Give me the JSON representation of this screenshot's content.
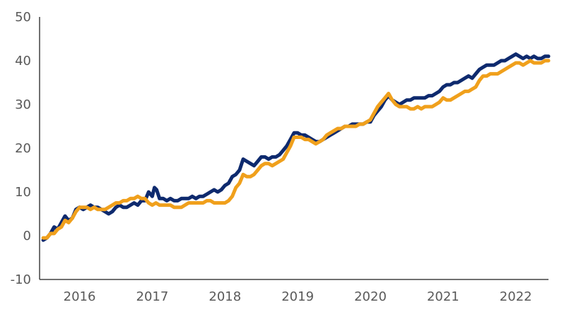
{
  "chart_data": {
    "type": "line",
    "title": "",
    "xlabel": "",
    "ylabel": "",
    "xlim": [
      2015.45,
      2022.45
    ],
    "ylim": [
      -10,
      50
    ],
    "yticks": [
      -10,
      0,
      10,
      20,
      30,
      40,
      50
    ],
    "xticks": [
      2016,
      2017,
      2018,
      2019,
      2020,
      2021,
      2022
    ],
    "grid": false,
    "legend": "none",
    "series": [
      {
        "color": "#0e2a6e",
        "points": [
          [
            2015.5,
            -1.0
          ],
          [
            2015.55,
            -0.5
          ],
          [
            2015.6,
            0.5
          ],
          [
            2015.65,
            2.0
          ],
          [
            2015.7,
            1.5
          ],
          [
            2015.75,
            3.0
          ],
          [
            2015.8,
            4.5
          ],
          [
            2015.85,
            3.5
          ],
          [
            2015.9,
            4.0
          ],
          [
            2015.95,
            6.0
          ],
          [
            2016.0,
            6.5
          ],
          [
            2016.05,
            6.0
          ],
          [
            2016.1,
            6.5
          ],
          [
            2016.15,
            7.0
          ],
          [
            2016.2,
            6.5
          ],
          [
            2016.25,
            6.5
          ],
          [
            2016.3,
            6.0
          ],
          [
            2016.35,
            5.5
          ],
          [
            2016.4,
            5.0
          ],
          [
            2016.45,
            5.5
          ],
          [
            2016.5,
            6.5
          ],
          [
            2016.55,
            7.0
          ],
          [
            2016.6,
            6.5
          ],
          [
            2016.65,
            6.5
          ],
          [
            2016.7,
            7.0
          ],
          [
            2016.75,
            7.5
          ],
          [
            2016.8,
            7.0
          ],
          [
            2016.85,
            8.0
          ],
          [
            2016.9,
            8.0
          ],
          [
            2016.95,
            10.0
          ],
          [
            2017.0,
            9.0
          ],
          [
            2017.03,
            11.0
          ],
          [
            2017.06,
            10.5
          ],
          [
            2017.1,
            8.5
          ],
          [
            2017.15,
            8.5
          ],
          [
            2017.2,
            8.0
          ],
          [
            2017.25,
            8.5
          ],
          [
            2017.3,
            8.0
          ],
          [
            2017.35,
            8.0
          ],
          [
            2017.4,
            8.5
          ],
          [
            2017.45,
            8.5
          ],
          [
            2017.5,
            8.5
          ],
          [
            2017.55,
            9.0
          ],
          [
            2017.6,
            8.5
          ],
          [
            2017.65,
            9.0
          ],
          [
            2017.7,
            9.0
          ],
          [
            2017.75,
            9.5
          ],
          [
            2017.8,
            10.0
          ],
          [
            2017.85,
            10.5
          ],
          [
            2017.9,
            10.0
          ],
          [
            2017.95,
            10.5
          ],
          [
            2018.0,
            11.5
          ],
          [
            2018.05,
            12.0
          ],
          [
            2018.1,
            13.5
          ],
          [
            2018.15,
            14.0
          ],
          [
            2018.2,
            15.0
          ],
          [
            2018.25,
            17.5
          ],
          [
            2018.3,
            17.0
          ],
          [
            2018.35,
            16.5
          ],
          [
            2018.4,
            16.0
          ],
          [
            2018.45,
            17.0
          ],
          [
            2018.5,
            18.0
          ],
          [
            2018.55,
            18.0
          ],
          [
            2018.6,
            17.5
          ],
          [
            2018.65,
            18.0
          ],
          [
            2018.7,
            18.0
          ],
          [
            2018.75,
            18.5
          ],
          [
            2018.8,
            19.5
          ],
          [
            2018.85,
            20.5
          ],
          [
            2018.9,
            22.0
          ],
          [
            2018.95,
            23.5
          ],
          [
            2019.0,
            23.5
          ],
          [
            2019.05,
            23.0
          ],
          [
            2019.1,
            23.0
          ],
          [
            2019.15,
            22.5
          ],
          [
            2019.2,
            22.0
          ],
          [
            2019.25,
            21.5
          ],
          [
            2019.3,
            21.5
          ],
          [
            2019.35,
            22.0
          ],
          [
            2019.4,
            22.5
          ],
          [
            2019.45,
            23.0
          ],
          [
            2019.5,
            23.5
          ],
          [
            2019.55,
            24.0
          ],
          [
            2019.6,
            24.5
          ],
          [
            2019.65,
            25.0
          ],
          [
            2019.7,
            25.0
          ],
          [
            2019.75,
            25.5
          ],
          [
            2019.8,
            25.5
          ],
          [
            2019.85,
            25.5
          ],
          [
            2019.9,
            25.5
          ],
          [
            2019.95,
            26.0
          ],
          [
            2020.0,
            26.0
          ],
          [
            2020.05,
            27.5
          ],
          [
            2020.1,
            28.5
          ],
          [
            2020.15,
            29.5
          ],
          [
            2020.2,
            31.0
          ],
          [
            2020.25,
            32.0
          ],
          [
            2020.3,
            31.0
          ],
          [
            2020.35,
            30.5
          ],
          [
            2020.4,
            30.0
          ],
          [
            2020.45,
            30.5
          ],
          [
            2020.5,
            31.0
          ],
          [
            2020.55,
            31.0
          ],
          [
            2020.6,
            31.5
          ],
          [
            2020.65,
            31.5
          ],
          [
            2020.7,
            31.5
          ],
          [
            2020.75,
            31.5
          ],
          [
            2020.8,
            32.0
          ],
          [
            2020.85,
            32.0
          ],
          [
            2020.9,
            32.5
          ],
          [
            2020.95,
            33.0
          ],
          [
            2021.0,
            34.0
          ],
          [
            2021.05,
            34.5
          ],
          [
            2021.1,
            34.5
          ],
          [
            2021.15,
            35.0
          ],
          [
            2021.2,
            35.0
          ],
          [
            2021.25,
            35.5
          ],
          [
            2021.3,
            36.0
          ],
          [
            2021.35,
            36.5
          ],
          [
            2021.4,
            36.0
          ],
          [
            2021.45,
            37.0
          ],
          [
            2021.5,
            38.0
          ],
          [
            2021.55,
            38.5
          ],
          [
            2021.6,
            39.0
          ],
          [
            2021.65,
            39.0
          ],
          [
            2021.7,
            39.0
          ],
          [
            2021.75,
            39.5
          ],
          [
            2021.8,
            40.0
          ],
          [
            2021.85,
            40.0
          ],
          [
            2021.9,
            40.5
          ],
          [
            2021.95,
            41.0
          ],
          [
            2022.0,
            41.5
          ],
          [
            2022.05,
            41.0
          ],
          [
            2022.1,
            40.5
          ],
          [
            2022.15,
            41.0
          ],
          [
            2022.2,
            40.5
          ],
          [
            2022.25,
            41.0
          ],
          [
            2022.3,
            40.5
          ],
          [
            2022.35,
            40.5
          ],
          [
            2022.4,
            41.0
          ],
          [
            2022.45,
            41.0
          ]
        ]
      },
      {
        "color": "#f0a01c",
        "points": [
          [
            2015.5,
            -0.5
          ],
          [
            2015.55,
            -0.5
          ],
          [
            2015.6,
            0.5
          ],
          [
            2015.65,
            0.5
          ],
          [
            2015.7,
            1.5
          ],
          [
            2015.75,
            2.0
          ],
          [
            2015.8,
            3.5
          ],
          [
            2015.85,
            3.0
          ],
          [
            2015.9,
            4.0
          ],
          [
            2015.95,
            5.5
          ],
          [
            2016.0,
            6.5
          ],
          [
            2016.05,
            6.5
          ],
          [
            2016.1,
            6.5
          ],
          [
            2016.15,
            6.0
          ],
          [
            2016.2,
            6.5
          ],
          [
            2016.25,
            6.0
          ],
          [
            2016.3,
            6.0
          ],
          [
            2016.35,
            6.0
          ],
          [
            2016.4,
            6.5
          ],
          [
            2016.45,
            7.0
          ],
          [
            2016.5,
            7.5
          ],
          [
            2016.55,
            7.5
          ],
          [
            2016.6,
            8.0
          ],
          [
            2016.65,
            8.0
          ],
          [
            2016.7,
            8.5
          ],
          [
            2016.75,
            8.5
          ],
          [
            2016.8,
            9.0
          ],
          [
            2016.85,
            8.5
          ],
          [
            2016.9,
            8.5
          ],
          [
            2016.95,
            7.5
          ],
          [
            2017.0,
            7.0
          ],
          [
            2017.05,
            7.5
          ],
          [
            2017.1,
            7.0
          ],
          [
            2017.15,
            7.0
          ],
          [
            2017.2,
            7.0
          ],
          [
            2017.25,
            7.0
          ],
          [
            2017.3,
            6.5
          ],
          [
            2017.35,
            6.5
          ],
          [
            2017.4,
            6.5
          ],
          [
            2017.45,
            7.0
          ],
          [
            2017.5,
            7.5
          ],
          [
            2017.55,
            7.5
          ],
          [
            2017.6,
            7.5
          ],
          [
            2017.65,
            7.5
          ],
          [
            2017.7,
            7.5
          ],
          [
            2017.75,
            8.0
          ],
          [
            2017.8,
            8.0
          ],
          [
            2017.85,
            7.5
          ],
          [
            2017.9,
            7.5
          ],
          [
            2017.95,
            7.5
          ],
          [
            2018.0,
            7.5
          ],
          [
            2018.05,
            8.0
          ],
          [
            2018.1,
            9.0
          ],
          [
            2018.15,
            11.0
          ],
          [
            2018.2,
            12.0
          ],
          [
            2018.25,
            14.0
          ],
          [
            2018.3,
            13.5
          ],
          [
            2018.35,
            13.5
          ],
          [
            2018.4,
            14.0
          ],
          [
            2018.45,
            15.0
          ],
          [
            2018.5,
            16.0
          ],
          [
            2018.55,
            16.5
          ],
          [
            2018.6,
            16.5
          ],
          [
            2018.65,
            16.0
          ],
          [
            2018.7,
            16.5
          ],
          [
            2018.75,
            17.0
          ],
          [
            2018.8,
            17.5
          ],
          [
            2018.85,
            19.0
          ],
          [
            2018.9,
            20.5
          ],
          [
            2018.95,
            22.5
          ],
          [
            2019.0,
            22.5
          ],
          [
            2019.05,
            22.5
          ],
          [
            2019.1,
            22.0
          ],
          [
            2019.15,
            22.0
          ],
          [
            2019.2,
            21.5
          ],
          [
            2019.25,
            21.0
          ],
          [
            2019.3,
            21.5
          ],
          [
            2019.35,
            22.0
          ],
          [
            2019.4,
            23.0
          ],
          [
            2019.45,
            23.5
          ],
          [
            2019.5,
            24.0
          ],
          [
            2019.55,
            24.5
          ],
          [
            2019.6,
            24.5
          ],
          [
            2019.65,
            25.0
          ],
          [
            2019.7,
            25.0
          ],
          [
            2019.75,
            25.0
          ],
          [
            2019.8,
            25.0
          ],
          [
            2019.85,
            25.5
          ],
          [
            2019.9,
            25.5
          ],
          [
            2019.95,
            26.0
          ],
          [
            2020.0,
            26.5
          ],
          [
            2020.05,
            28.0
          ],
          [
            2020.1,
            29.5
          ],
          [
            2020.15,
            30.5
          ],
          [
            2020.2,
            31.5
          ],
          [
            2020.25,
            32.5
          ],
          [
            2020.3,
            31.0
          ],
          [
            2020.35,
            30.0
          ],
          [
            2020.4,
            29.5
          ],
          [
            2020.45,
            29.5
          ],
          [
            2020.5,
            29.5
          ],
          [
            2020.55,
            29.0
          ],
          [
            2020.6,
            29.0
          ],
          [
            2020.65,
            29.5
          ],
          [
            2020.7,
            29.0
          ],
          [
            2020.75,
            29.5
          ],
          [
            2020.8,
            29.5
          ],
          [
            2020.85,
            29.5
          ],
          [
            2020.9,
            30.0
          ],
          [
            2020.95,
            30.5
          ],
          [
            2021.0,
            31.5
          ],
          [
            2021.05,
            31.0
          ],
          [
            2021.1,
            31.0
          ],
          [
            2021.15,
            31.5
          ],
          [
            2021.2,
            32.0
          ],
          [
            2021.25,
            32.5
          ],
          [
            2021.3,
            33.0
          ],
          [
            2021.35,
            33.0
          ],
          [
            2021.4,
            33.5
          ],
          [
            2021.45,
            34.0
          ],
          [
            2021.5,
            35.5
          ],
          [
            2021.55,
            36.5
          ],
          [
            2021.6,
            36.5
          ],
          [
            2021.65,
            37.0
          ],
          [
            2021.7,
            37.0
          ],
          [
            2021.75,
            37.0
          ],
          [
            2021.8,
            37.5
          ],
          [
            2021.85,
            38.0
          ],
          [
            2021.9,
            38.5
          ],
          [
            2021.95,
            39.0
          ],
          [
            2022.0,
            39.5
          ],
          [
            2022.05,
            39.5
          ],
          [
            2022.1,
            39.0
          ],
          [
            2022.15,
            39.5
          ],
          [
            2022.2,
            40.0
          ],
          [
            2022.25,
            39.5
          ],
          [
            2022.3,
            39.5
          ],
          [
            2022.35,
            39.5
          ],
          [
            2022.4,
            40.0
          ],
          [
            2022.45,
            40.0
          ]
        ]
      }
    ]
  }
}
